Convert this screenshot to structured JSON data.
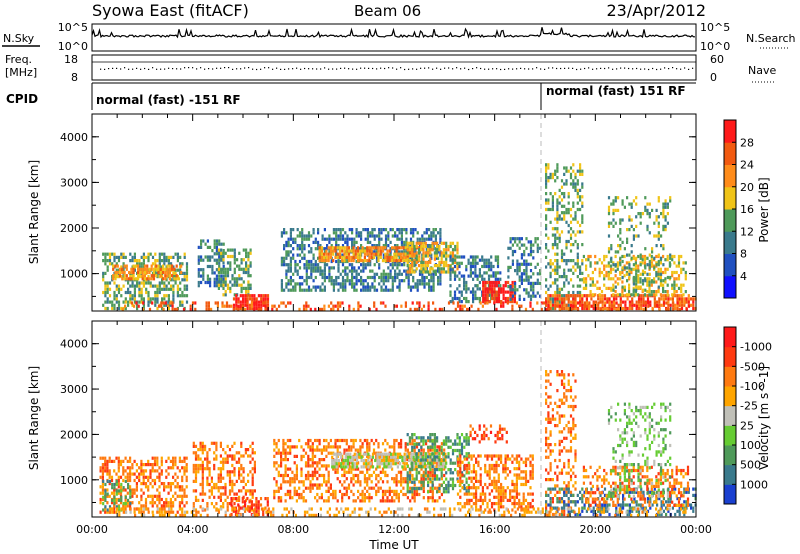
{
  "header": {
    "station": "Syowa East (fitACF)",
    "beam": "Beam 06",
    "date": "23/Apr/2012"
  },
  "panels": {
    "nsky": {
      "label": "N.Sky",
      "tick_top": "10^5",
      "tick_bottom": "10^0",
      "right_label": "N.Search",
      "right_tick_top": "10^5",
      "right_tick_bottom": "10^0"
    },
    "freq": {
      "label_line1": "Freq.",
      "label_line2": "[MHz]",
      "tick_top": "18",
      "tick_bottom": "8",
      "right_label": "Nave",
      "right_tick_top": "60",
      "right_tick_bottom": "0"
    },
    "cpid": {
      "label": "CPID",
      "mode1": "normal (fast) -151 RF",
      "mode2": "normal (fast) 151 RF"
    }
  },
  "chart_data": [
    {
      "type": "heatmap",
      "name": "power",
      "ylabel": "Slant Range [km]",
      "y_ticks": [
        "1000",
        "2000",
        "3000",
        "4000"
      ],
      "ylim": [
        180,
        4500
      ],
      "x_ticks": [
        "00:00",
        "04:00",
        "08:00",
        "12:00",
        "16:00",
        "20:00",
        "00:00"
      ],
      "xlim_hours": [
        0,
        24
      ],
      "colorbar": {
        "label": "Power [dB]",
        "ticks": [
          "4",
          "8",
          "12",
          "16",
          "20",
          "24",
          "28"
        ],
        "colors": [
          "#1010ff",
          "#2050c0",
          "#3a7a8c",
          "#4f9a5a",
          "#f0c418",
          "#ff8c1a",
          "#f25a10",
          "#ff1a1a"
        ]
      },
      "regions": [
        {
          "t0": 0.4,
          "t1": 3.8,
          "r0": 200,
          "r1": 1400,
          "level": 3,
          "density": 0.55
        },
        {
          "t0": 0.8,
          "t1": 3.5,
          "r0": 850,
          "r1": 1150,
          "level": 5,
          "density": 0.7
        },
        {
          "t0": 4.2,
          "t1": 5.2,
          "r0": 700,
          "r1": 1700,
          "level": 2,
          "density": 0.45
        },
        {
          "t0": 5.0,
          "t1": 6.3,
          "r0": 500,
          "r1": 1500,
          "level": 3,
          "density": 0.55
        },
        {
          "t0": 5.6,
          "t1": 7.0,
          "r0": 200,
          "r1": 500,
          "level": 7,
          "density": 0.85
        },
        {
          "t0": 7.5,
          "t1": 13.8,
          "r0": 600,
          "r1": 2000,
          "level": 2,
          "density": 0.55
        },
        {
          "t0": 9.0,
          "t1": 13.0,
          "r0": 1250,
          "r1": 1550,
          "level": 5,
          "density": 0.75
        },
        {
          "t0": 12.5,
          "t1": 14.5,
          "r0": 1000,
          "r1": 1700,
          "level": 4,
          "density": 0.7
        },
        {
          "t0": 14.2,
          "t1": 16.2,
          "r0": 350,
          "r1": 1400,
          "level": 2,
          "density": 0.5
        },
        {
          "t0": 15.5,
          "t1": 16.8,
          "r0": 350,
          "r1": 800,
          "level": 7,
          "density": 0.85
        },
        {
          "t0": 16.5,
          "t1": 17.8,
          "r0": 400,
          "r1": 1800,
          "level": 2,
          "density": 0.4
        },
        {
          "t0": 18.0,
          "t1": 19.5,
          "r0": 200,
          "r1": 3400,
          "level": 3,
          "density": 0.35
        },
        {
          "t0": 18.0,
          "t1": 24.0,
          "r0": 200,
          "r1": 500,
          "level": 6,
          "density": 0.75
        },
        {
          "t0": 19.5,
          "t1": 23.6,
          "r0": 500,
          "r1": 1400,
          "level": 4,
          "density": 0.45
        },
        {
          "t0": 20.5,
          "t1": 23.0,
          "r0": 600,
          "r1": 2700,
          "level": 3,
          "density": 0.25
        },
        {
          "t0": 1.0,
          "t1": 23.8,
          "r0": 180,
          "r1": 350,
          "level": 6,
          "density": 0.3
        }
      ]
    },
    {
      "type": "heatmap",
      "name": "velocity",
      "ylabel": "Slant Range [km]",
      "y_ticks": [
        "1000",
        "2000",
        "3000",
        "4000"
      ],
      "ylim": [
        180,
        4500
      ],
      "x_ticks": [
        "00:00",
        "04:00",
        "08:00",
        "12:00",
        "16:00",
        "20:00",
        "00:00"
      ],
      "xlim_hours": [
        0,
        24
      ],
      "xlabel": "Time UT",
      "colorbar": {
        "label": "Velocity [m s^-1]",
        "ticks": [
          "1000",
          "500",
          "100",
          "25",
          "-25",
          "-100",
          "-500",
          "-1000"
        ],
        "colors": [
          "#1a40d0",
          "#3a7a8c",
          "#4f9a5a",
          "#66cc33",
          "#c0c0b8",
          "#ffa500",
          "#ff7a10",
          "#ff3a10",
          "#ff1a1a"
        ]
      },
      "regions": [
        {
          "t0": 0.3,
          "t1": 3.8,
          "r0": 250,
          "r1": 1500,
          "level": 6,
          "density": 0.5
        },
        {
          "t0": 0.4,
          "t1": 1.5,
          "r0": 300,
          "r1": 1000,
          "level": 2,
          "density": 0.4
        },
        {
          "t0": 4.0,
          "t1": 6.5,
          "r0": 300,
          "r1": 1800,
          "level": 6,
          "density": 0.45
        },
        {
          "t0": 5.5,
          "t1": 7.0,
          "r0": 200,
          "r1": 600,
          "level": 7,
          "density": 0.55
        },
        {
          "t0": 7.2,
          "t1": 14.0,
          "r0": 500,
          "r1": 1900,
          "level": 6,
          "density": 0.45
        },
        {
          "t0": 9.5,
          "t1": 14.0,
          "r0": 1250,
          "r1": 1550,
          "level": 4,
          "density": 0.8
        },
        {
          "t0": 12.5,
          "t1": 15.0,
          "r0": 700,
          "r1": 2000,
          "level": 2,
          "density": 0.4
        },
        {
          "t0": 14.5,
          "t1": 17.5,
          "r0": 300,
          "r1": 1500,
          "level": 6,
          "density": 0.5
        },
        {
          "t0": 15.0,
          "t1": 16.5,
          "r0": 1800,
          "r1": 2200,
          "level": 7,
          "density": 0.4
        },
        {
          "t0": 18.0,
          "t1": 19.2,
          "r0": 200,
          "r1": 3400,
          "level": 6,
          "density": 0.35
        },
        {
          "t0": 18.0,
          "t1": 24.0,
          "r0": 200,
          "r1": 800,
          "level": 1,
          "density": 0.4
        },
        {
          "t0": 19.5,
          "t1": 23.7,
          "r0": 400,
          "r1": 1300,
          "level": 6,
          "density": 0.4
        },
        {
          "t0": 20.5,
          "t1": 23.0,
          "r0": 600,
          "r1": 2700,
          "level": 3,
          "density": 0.25
        },
        {
          "t0": 0.5,
          "t1": 23.8,
          "r0": 180,
          "r1": 350,
          "level": 5,
          "density": 0.3
        }
      ]
    }
  ]
}
